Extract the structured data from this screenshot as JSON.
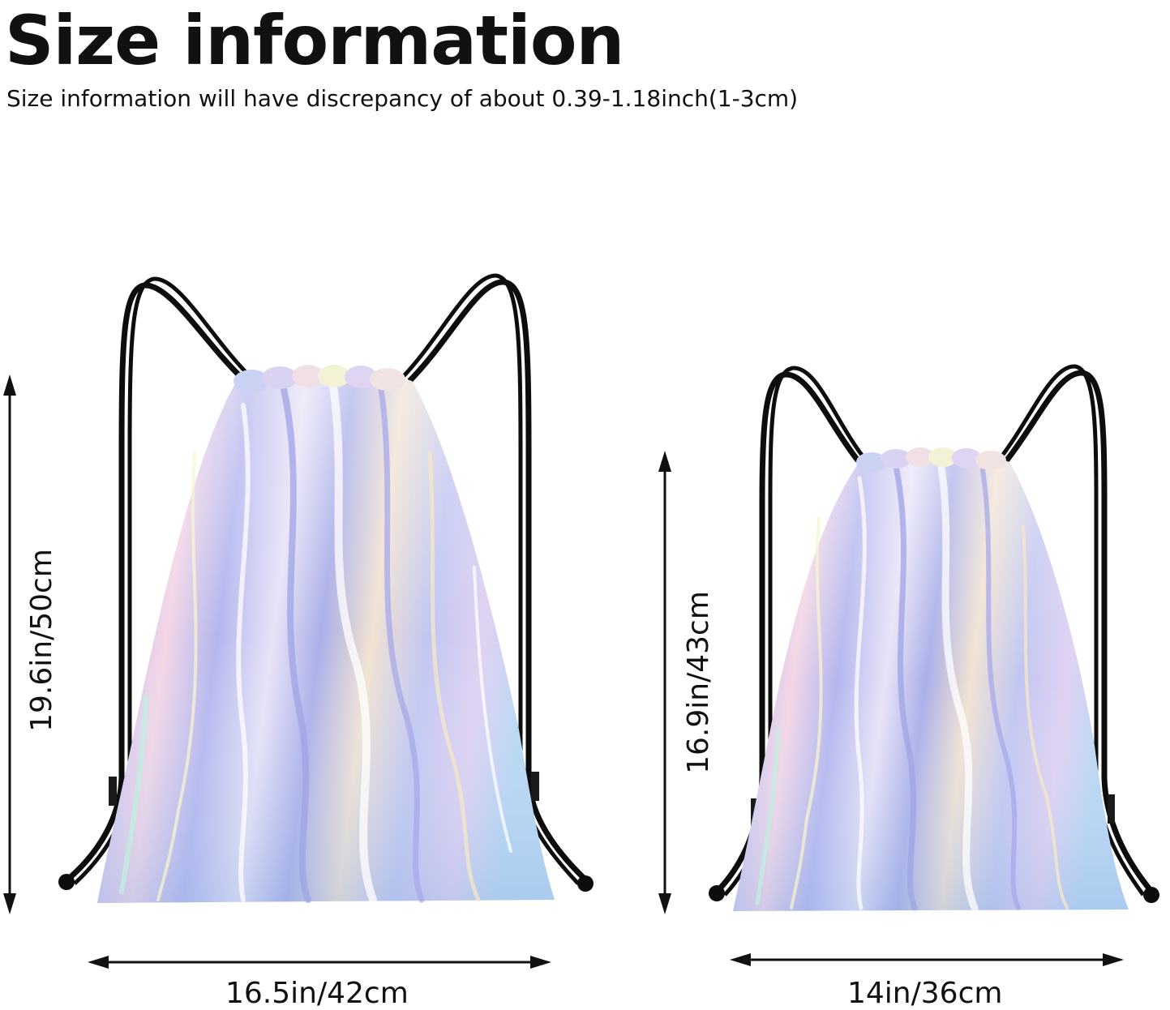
{
  "header": {
    "title": "Size information",
    "subtitle": "Size information will have discrepancy of about 0.39-1.18inch(1-3cm)"
  },
  "bags": [
    {
      "height_label": "19.6in/50cm",
      "width_label": "16.5in/42cm"
    },
    {
      "height_label": "16.9in/43cm",
      "width_label": "14in/36cm"
    }
  ],
  "colors": {
    "text": "#111111",
    "cord": "#0d0d0d",
    "arrow": "#111111",
    "bag_base": "#b9c8ec"
  }
}
